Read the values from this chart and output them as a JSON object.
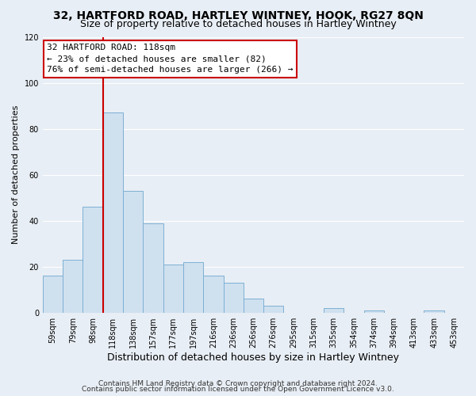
{
  "title": "32, HARTFORD ROAD, HARTLEY WINTNEY, HOOK, RG27 8QN",
  "subtitle": "Size of property relative to detached houses in Hartley Wintney",
  "xlabel": "Distribution of detached houses by size in Hartley Wintney",
  "ylabel": "Number of detached properties",
  "bar_labels": [
    "59sqm",
    "79sqm",
    "98sqm",
    "118sqm",
    "138sqm",
    "157sqm",
    "177sqm",
    "197sqm",
    "216sqm",
    "236sqm",
    "256sqm",
    "276sqm",
    "295sqm",
    "315sqm",
    "335sqm",
    "354sqm",
    "374sqm",
    "394sqm",
    "413sqm",
    "433sqm",
    "453sqm"
  ],
  "bar_values": [
    16,
    23,
    46,
    87,
    53,
    39,
    21,
    22,
    16,
    13,
    6,
    3,
    0,
    0,
    2,
    0,
    1,
    0,
    0,
    1,
    0
  ],
  "bar_color": "#cfe0ef",
  "bar_edge_color": "#7db0d4",
  "vline_color": "#cc0000",
  "ylim": [
    0,
    120
  ],
  "yticks": [
    0,
    20,
    40,
    60,
    80,
    100,
    120
  ],
  "annotation_title": "32 HARTFORD ROAD: 118sqm",
  "annotation_line1": "← 23% of detached houses are smaller (82)",
  "annotation_line2": "76% of semi-detached houses are larger (266) →",
  "annotation_box_color": "#ffffff",
  "annotation_box_edge": "#cc0000",
  "footer_line1": "Contains HM Land Registry data © Crown copyright and database right 2024.",
  "footer_line2": "Contains public sector information licensed under the Open Government Licence v3.0.",
  "background_color": "#e8eef5",
  "plot_background": "#e8eef5",
  "grid_color": "#ffffff",
  "title_fontsize": 10,
  "subtitle_fontsize": 9,
  "xlabel_fontsize": 9,
  "ylabel_fontsize": 8,
  "tick_fontsize": 7,
  "annotation_fontsize": 8,
  "footer_fontsize": 6.5
}
